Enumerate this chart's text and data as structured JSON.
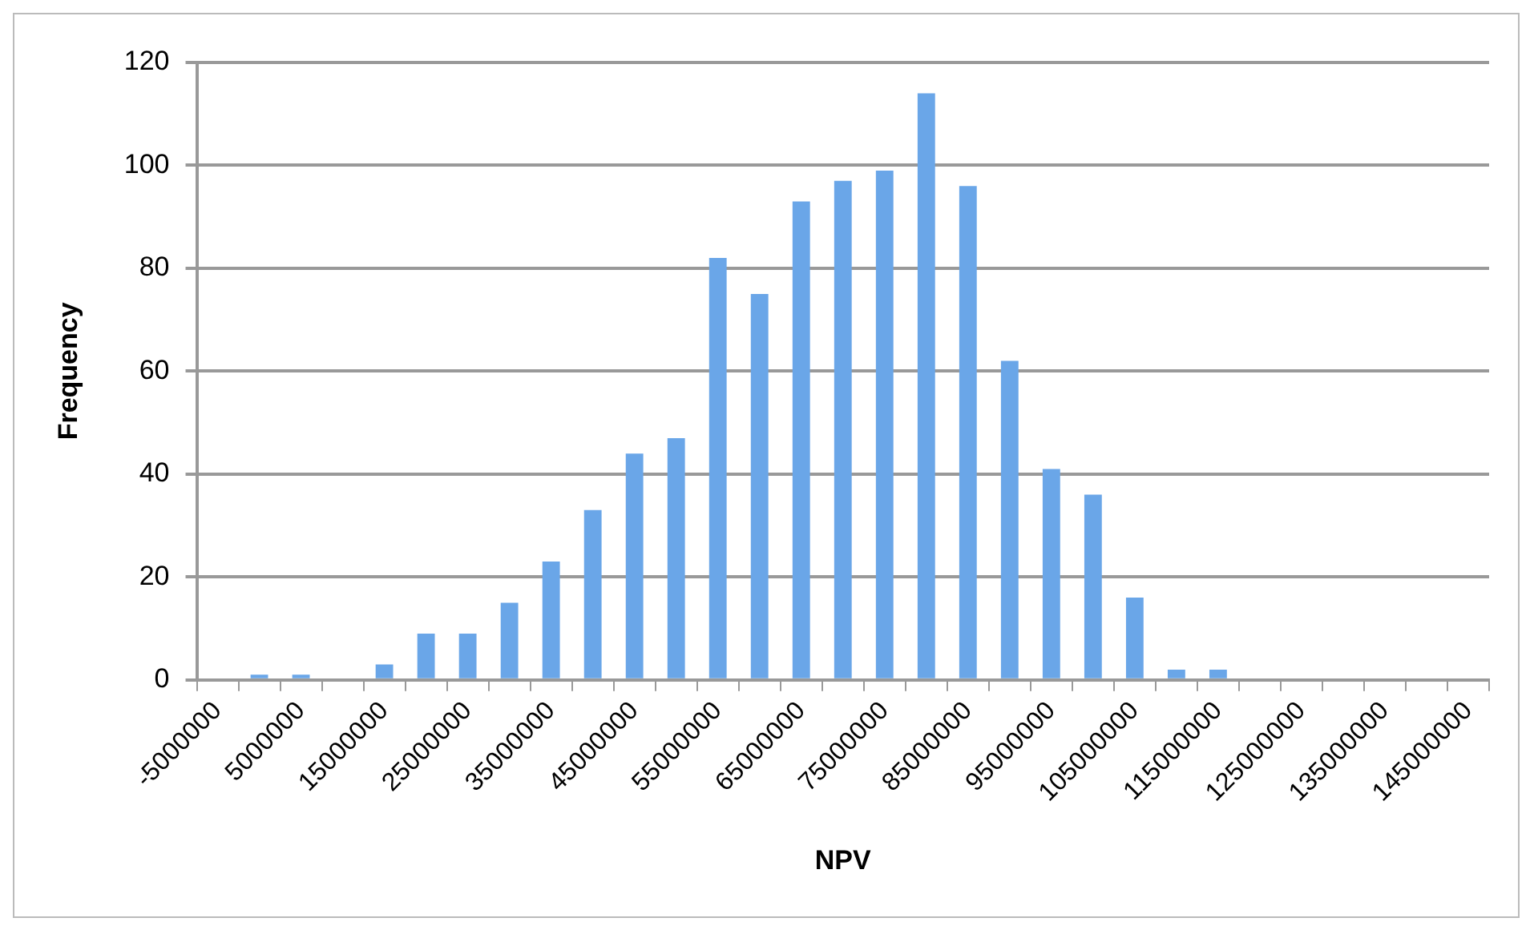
{
  "chart_data": {
    "type": "bar",
    "xlabel": "NPV",
    "ylabel": "Frequency",
    "categories": [
      "-5000000",
      null,
      "5000000",
      null,
      "15000000",
      null,
      "25000000",
      null,
      "35000000",
      null,
      "45000000",
      null,
      "55000000",
      null,
      "65000000",
      null,
      "75000000",
      null,
      "85000000",
      null,
      "95000000",
      null,
      "105000000",
      null,
      "115000000",
      null,
      "125000000",
      null,
      "135000000",
      null,
      "145000000"
    ],
    "values": [
      0,
      1,
      1,
      0,
      3,
      9,
      9,
      15,
      23,
      33,
      44,
      47,
      82,
      75,
      93,
      97,
      99,
      114,
      96,
      62,
      41,
      36,
      16,
      2,
      2,
      0,
      0,
      0,
      0,
      0,
      0
    ],
    "color": "#6aa6e8",
    "ylim": [
      0,
      120
    ],
    "yticks": [
      0,
      20,
      40,
      60,
      80,
      100,
      120
    ],
    "grid": "y",
    "legend": false
  }
}
